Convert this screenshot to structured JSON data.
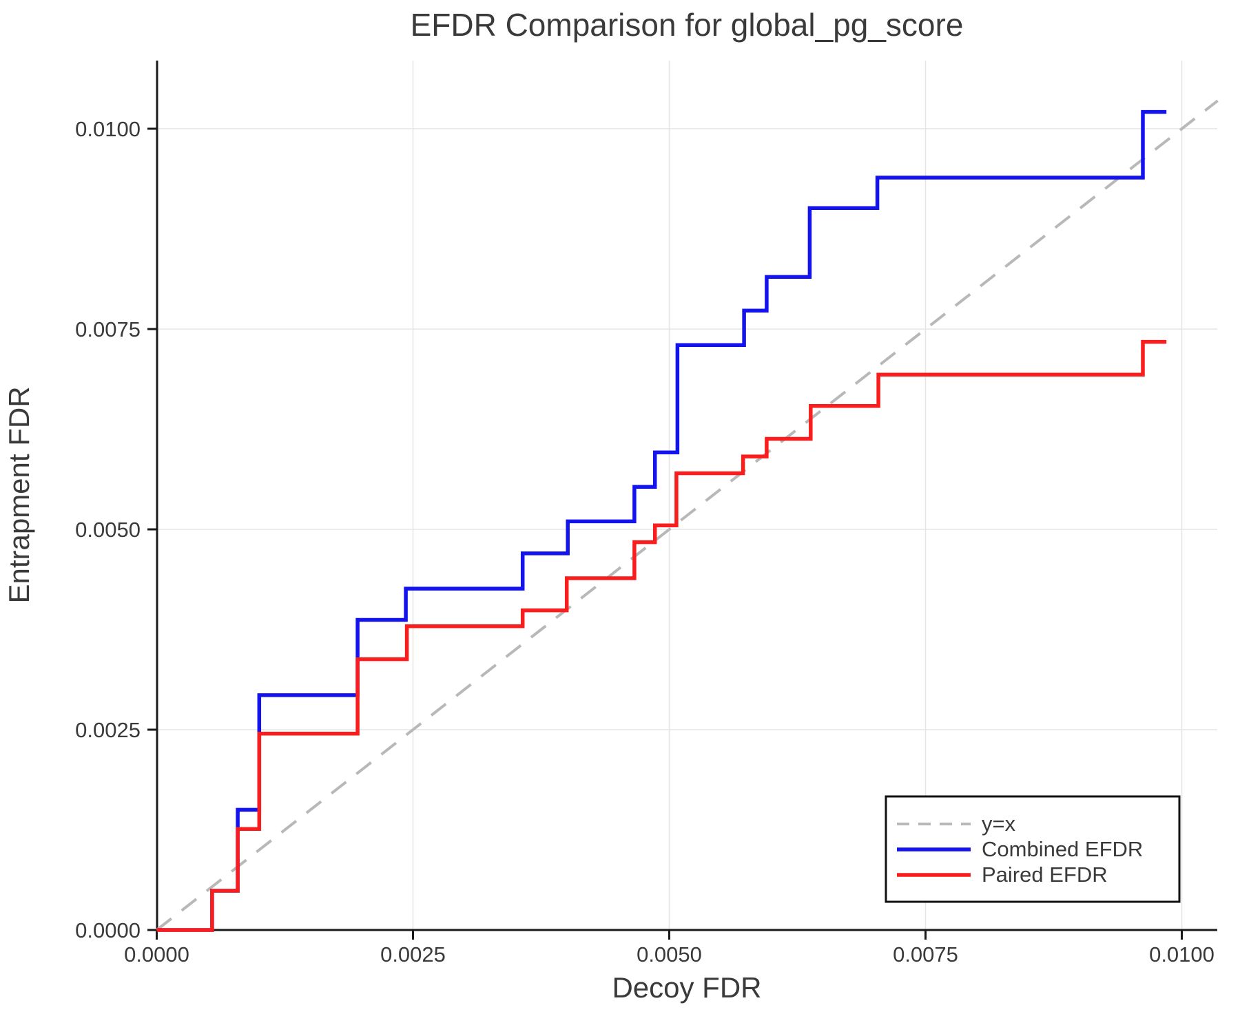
{
  "chart_data": {
    "type": "line",
    "title": "EFDR Comparison for global_pg_score",
    "xlabel": "Decoy FDR",
    "ylabel": "Entrapment FDR",
    "xlim": [
      0,
      0.01035
    ],
    "ylim": [
      0,
      0.01085
    ],
    "grid": true,
    "legend_position": "bottom-right",
    "background_color": "#ffffff",
    "grid_color": "#e5e5e5",
    "axis_color": "#1a1a1a",
    "text_color": "#3a3a3a",
    "xticks": {
      "values": [
        0,
        0.0025,
        0.005,
        0.0075,
        0.01
      ],
      "labels": [
        "0.0000",
        "0.0025",
        "0.0050",
        "0.0075",
        "0.0100"
      ]
    },
    "yticks": {
      "values": [
        0,
        0.0025,
        0.005,
        0.0075,
        0.01
      ],
      "labels": [
        "0.0000",
        "0.0025",
        "0.0050",
        "0.0075",
        "0.0100"
      ]
    },
    "series": [
      {
        "name": "y=x",
        "style": "dashed",
        "color": "#b8b8b8",
        "width": 4,
        "points": [
          [
            0,
            0
          ],
          [
            0.01035,
            0.01035
          ]
        ]
      },
      {
        "name": "Combined EFDR",
        "style": "solid",
        "color": "#1313ee",
        "width": 5.5,
        "points": [
          [
            0,
            0
          ],
          [
            0.00054,
            0
          ],
          [
            0.00054,
            0.00049
          ],
          [
            0.00079,
            0.00049
          ],
          [
            0.00079,
            0.0015
          ],
          [
            0.001,
            0.0015
          ],
          [
            0.001,
            0.00293
          ],
          [
            0.00196,
            0.00293
          ],
          [
            0.00196,
            0.00387
          ],
          [
            0.00243,
            0.00387
          ],
          [
            0.00243,
            0.00426
          ],
          [
            0.00357,
            0.00426
          ],
          [
            0.00357,
            0.0047
          ],
          [
            0.00401,
            0.0047
          ],
          [
            0.00401,
            0.0051
          ],
          [
            0.00466,
            0.0051
          ],
          [
            0.00466,
            0.00553
          ],
          [
            0.00486,
            0.00553
          ],
          [
            0.00486,
            0.00596
          ],
          [
            0.00508,
            0.00596
          ],
          [
            0.00508,
            0.0073
          ],
          [
            0.00573,
            0.0073
          ],
          [
            0.00573,
            0.00773
          ],
          [
            0.00595,
            0.00773
          ],
          [
            0.00595,
            0.00815
          ],
          [
            0.00637,
            0.00815
          ],
          [
            0.00637,
            0.00901
          ],
          [
            0.00703,
            0.00901
          ],
          [
            0.00703,
            0.00939
          ],
          [
            0.00962,
            0.00939
          ],
          [
            0.00962,
            0.01021
          ],
          [
            0.00985,
            0.01021
          ]
        ]
      },
      {
        "name": "Paired EFDR",
        "style": "solid",
        "color": "#f91d1d",
        "width": 5.5,
        "points": [
          [
            0,
            0
          ],
          [
            0.00054,
            0
          ],
          [
            0.00054,
            0.00049
          ],
          [
            0.00079,
            0.00049
          ],
          [
            0.00079,
            0.00126
          ],
          [
            0.001,
            0.00126
          ],
          [
            0.001,
            0.00245
          ],
          [
            0.00196,
            0.00245
          ],
          [
            0.00196,
            0.00338
          ],
          [
            0.00244,
            0.00338
          ],
          [
            0.00244,
            0.00379
          ],
          [
            0.00357,
            0.00379
          ],
          [
            0.00357,
            0.00399
          ],
          [
            0.004,
            0.00399
          ],
          [
            0.004,
            0.00439
          ],
          [
            0.00466,
            0.00439
          ],
          [
            0.00466,
            0.00484
          ],
          [
            0.00486,
            0.00484
          ],
          [
            0.00486,
            0.00505
          ],
          [
            0.00507,
            0.00505
          ],
          [
            0.00507,
            0.0057
          ],
          [
            0.00572,
            0.0057
          ],
          [
            0.00572,
            0.00591
          ],
          [
            0.00595,
            0.00591
          ],
          [
            0.00595,
            0.00613
          ],
          [
            0.00638,
            0.00613
          ],
          [
            0.00638,
            0.00654
          ],
          [
            0.00704,
            0.00654
          ],
          [
            0.00704,
            0.00693
          ],
          [
            0.00962,
            0.00693
          ],
          [
            0.00962,
            0.00734
          ],
          [
            0.00985,
            0.00734
          ]
        ]
      }
    ]
  }
}
